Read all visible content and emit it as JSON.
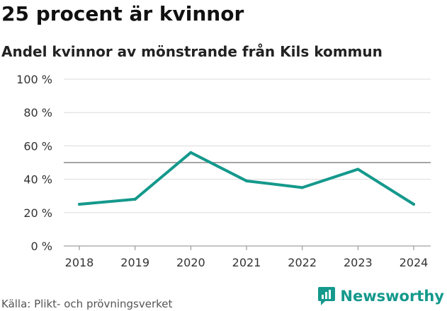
{
  "header": {
    "title": "25 procent är kvinnor",
    "subtitle": "Andel kvinnor av mönstrande från Kils kommun"
  },
  "footer": {
    "source": "Källa: Plikt- och prövningsverket",
    "brand": "Newsworthy",
    "brand_icon": "bar-chart-speech-icon"
  },
  "colors": {
    "line": "#14998c",
    "grid": "#dcdcdc",
    "reference": "#888888",
    "brand": "#14998c"
  },
  "chart_data": {
    "type": "line",
    "title": "25 procent är kvinnor",
    "subtitle": "Andel kvinnor av mönstrande från Kils kommun",
    "xlabel": "",
    "ylabel": "",
    "x": [
      "2018",
      "2019",
      "2020",
      "2021",
      "2022",
      "2023",
      "2024"
    ],
    "series": [
      {
        "name": "Andel kvinnor",
        "values": [
          25,
          28,
          56,
          39,
          35,
          46,
          25
        ]
      }
    ],
    "ylim": [
      0,
      100
    ],
    "yticks": [
      0,
      20,
      40,
      60,
      80,
      100
    ],
    "ytick_labels": [
      "0 %",
      "20 %",
      "40 %",
      "60 %",
      "80 %",
      "100 %"
    ],
    "reference_line": 50,
    "grid": true,
    "legend": "none"
  }
}
